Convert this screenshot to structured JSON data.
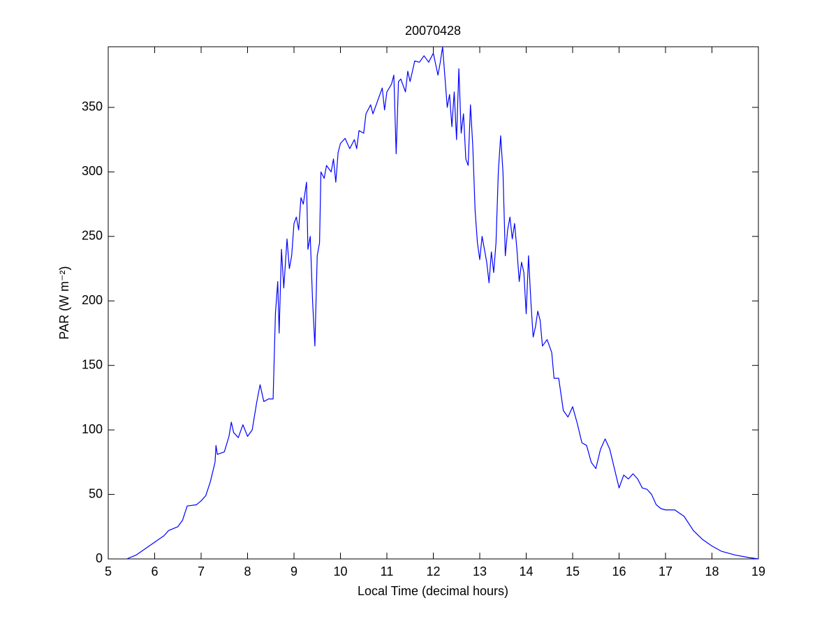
{
  "chart_data": {
    "type": "line",
    "title": "20070428",
    "xlabel": "Local Time (decimal hours)",
    "ylabel": "PAR (W m⁻²)",
    "xlim": [
      5,
      19
    ],
    "ylim": [
      0,
      397
    ],
    "xticks": [
      5,
      6,
      7,
      8,
      9,
      10,
      11,
      12,
      13,
      14,
      15,
      16,
      17,
      18,
      19
    ],
    "yticks": [
      0,
      50,
      100,
      150,
      200,
      250,
      300,
      350
    ],
    "grid": false,
    "series": [
      {
        "color": "#0000ff",
        "x": [
          5.4,
          5.6,
          5.8,
          6.0,
          6.2,
          6.3,
          6.5,
          6.6,
          6.7,
          6.9,
          7.0,
          7.1,
          7.2,
          7.3,
          7.32,
          7.35,
          7.5,
          7.6,
          7.65,
          7.7,
          7.8,
          7.9,
          8.0,
          8.1,
          8.2,
          8.27,
          8.35,
          8.45,
          8.55,
          8.6,
          8.65,
          8.68,
          8.73,
          8.78,
          8.85,
          8.9,
          8.95,
          9.0,
          9.05,
          9.1,
          9.15,
          9.2,
          9.27,
          9.3,
          9.35,
          9.4,
          9.45,
          9.5,
          9.55,
          9.58,
          9.65,
          9.7,
          9.8,
          9.85,
          9.9,
          9.95,
          10.0,
          10.1,
          10.2,
          10.3,
          10.35,
          10.4,
          10.5,
          10.55,
          10.65,
          10.7,
          10.8,
          10.9,
          10.95,
          11.0,
          11.1,
          11.15,
          11.2,
          11.25,
          11.3,
          11.4,
          11.45,
          11.5,
          11.6,
          11.7,
          11.8,
          11.9,
          12.0,
          12.1,
          12.15,
          12.2,
          12.3,
          12.35,
          12.4,
          12.45,
          12.5,
          12.55,
          12.6,
          12.65,
          12.7,
          12.75,
          12.8,
          12.85,
          12.9,
          12.95,
          13.0,
          13.05,
          13.15,
          13.2,
          13.25,
          13.3,
          13.35,
          13.4,
          13.45,
          13.5,
          13.55,
          13.6,
          13.65,
          13.7,
          13.75,
          13.8,
          13.85,
          13.9,
          13.95,
          14.0,
          14.05,
          14.1,
          14.15,
          14.2,
          14.25,
          14.3,
          14.35,
          14.45,
          14.55,
          14.6,
          14.7,
          14.8,
          14.9,
          15.0,
          15.1,
          15.2,
          15.3,
          15.4,
          15.5,
          15.6,
          15.7,
          15.8,
          15.9,
          16.0,
          16.1,
          16.2,
          16.3,
          16.4,
          16.5,
          16.6,
          16.7,
          16.8,
          16.9,
          17.0,
          17.2,
          17.4,
          17.6,
          17.8,
          18.0,
          18.2,
          18.5,
          18.8,
          19.0
        ],
        "values": [
          0,
          3,
          8,
          13,
          18,
          22,
          25,
          30,
          41,
          42,
          45,
          49,
          60,
          75,
          88,
          81,
          83,
          95,
          106,
          98,
          94,
          104,
          95,
          100,
          122,
          135,
          122,
          124,
          124,
          190,
          215,
          175,
          240,
          210,
          248,
          225,
          235,
          260,
          265,
          255,
          280,
          275,
          292,
          240,
          250,
          200,
          165,
          235,
          245,
          300,
          295,
          305,
          300,
          310,
          292,
          315,
          322,
          326,
          318,
          325,
          318,
          332,
          330,
          345,
          352,
          345,
          355,
          365,
          348,
          362,
          368,
          375,
          314,
          370,
          372,
          362,
          378,
          370,
          386,
          385,
          390,
          385,
          392,
          375,
          385,
          397,
          350,
          360,
          335,
          362,
          325,
          380,
          330,
          345,
          310,
          305,
          352,
          320,
          270,
          245,
          232,
          250,
          230,
          214,
          238,
          222,
          245,
          300,
          328,
          300,
          235,
          255,
          265,
          248,
          260,
          240,
          215,
          230,
          222,
          190,
          235,
          200,
          172,
          180,
          192,
          185,
          165,
          170,
          160,
          140,
          140,
          115,
          110,
          118,
          105,
          90,
          88,
          75,
          70,
          85,
          93,
          85,
          70,
          55,
          65,
          62,
          66,
          62,
          55,
          54,
          50,
          42,
          39,
          38,
          38,
          33,
          22,
          15,
          10,
          6,
          3,
          1,
          0
        ]
      }
    ]
  }
}
